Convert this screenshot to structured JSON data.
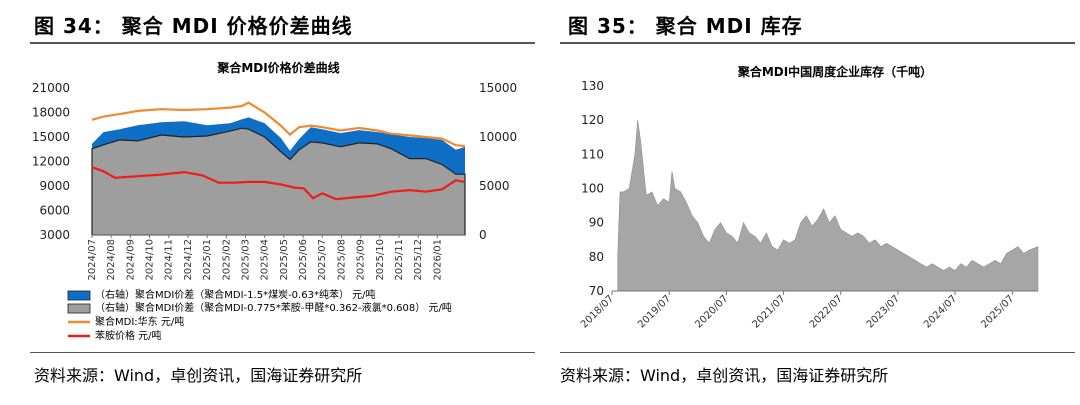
{
  "left": {
    "figure_title": "图 34：   聚合 MDI 价格价差曲线",
    "source": "资料来源：Wind，卓创资讯，国海证券研究所"
  },
  "right": {
    "figure_title": "图 35：   聚合 MDI 库存",
    "source": "资料来源：Wind，卓创资讯，国海证券研究所"
  },
  "chart_data": [
    {
      "type": "area",
      "title": "聚合MDI价格价差曲线",
      "x_categories": [
        "2024/07",
        "2024/08",
        "2024/09",
        "2024/10",
        "2024/11",
        "2024/12",
        "2025/01",
        "2025/02",
        "2025/03",
        "2025/04",
        "2025/05",
        "2025/06",
        "2025/07",
        "2025/08",
        "2025/09",
        "2025/10",
        "2025/11",
        "2025/12",
        "2026/01"
      ],
      "x_range": [
        2024.5,
        2026.12
      ],
      "y_left": {
        "min": 3000,
        "max": 21000,
        "ticks": [
          3000,
          6000,
          9000,
          12000,
          15000,
          18000,
          21000
        ]
      },
      "y_right": {
        "min": 0,
        "max": 15000,
        "ticks": [
          0,
          5000,
          10000,
          15000
        ]
      },
      "legend_position": "bottom",
      "series": [
        {
          "name": "（右轴）聚合MDI价差（聚合MDI-1.5*煤炭-0.63*纯苯） 元/吨",
          "axis": "right",
          "kind": "area",
          "color": "#0f6fc6",
          "points": [
            [
              2024.5,
              9300
            ],
            [
              2024.55,
              10500
            ],
            [
              2024.62,
              10800
            ],
            [
              2024.7,
              11200
            ],
            [
              2024.8,
              11500
            ],
            [
              2024.9,
              11600
            ],
            [
              2025.0,
              11200
            ],
            [
              2025.1,
              11400
            ],
            [
              2025.15,
              11800
            ],
            [
              2025.18,
              12000
            ],
            [
              2025.25,
              11400
            ],
            [
              2025.32,
              9900
            ],
            [
              2025.36,
              8600
            ],
            [
              2025.4,
              9800
            ],
            [
              2025.45,
              11000
            ],
            [
              2025.5,
              10800
            ],
            [
              2025.58,
              10400
            ],
            [
              2025.66,
              10700
            ],
            [
              2025.74,
              10500
            ],
            [
              2025.8,
              10300
            ],
            [
              2025.88,
              10000
            ],
            [
              2025.95,
              9900
            ],
            [
              2026.02,
              9700
            ],
            [
              2026.08,
              8700
            ],
            [
              2026.12,
              9000
            ]
          ]
        },
        {
          "name": "（右轴）聚合MDI价差（聚合MDI-0.775*苯胺-甲醛*0.362-液氯*0.608） 元/吨",
          "axis": "right",
          "kind": "area",
          "color": "#9e9e9e",
          "points": [
            [
              2024.5,
              8800
            ],
            [
              2024.55,
              9200
            ],
            [
              2024.62,
              9700
            ],
            [
              2024.7,
              9600
            ],
            [
              2024.8,
              10200
            ],
            [
              2024.9,
              10000
            ],
            [
              2025.0,
              10100
            ],
            [
              2025.1,
              10600
            ],
            [
              2025.15,
              10900
            ],
            [
              2025.18,
              10800
            ],
            [
              2025.25,
              10000
            ],
            [
              2025.32,
              8500
            ],
            [
              2025.36,
              7700
            ],
            [
              2025.4,
              8700
            ],
            [
              2025.45,
              9500
            ],
            [
              2025.5,
              9400
            ],
            [
              2025.58,
              9000
            ],
            [
              2025.66,
              9400
            ],
            [
              2025.74,
              9300
            ],
            [
              2025.8,
              8800
            ],
            [
              2025.88,
              7800
            ],
            [
              2025.95,
              7800
            ],
            [
              2026.02,
              7200
            ],
            [
              2026.08,
              6200
            ],
            [
              2026.12,
              6200
            ]
          ]
        },
        {
          "name": "聚合MDI:华东  元/吨",
          "axis": "left",
          "kind": "line",
          "color": "#f08a30",
          "points": [
            [
              2024.5,
              17100
            ],
            [
              2024.55,
              17500
            ],
            [
              2024.62,
              17800
            ],
            [
              2024.7,
              18200
            ],
            [
              2024.8,
              18400
            ],
            [
              2024.9,
              18300
            ],
            [
              2025.0,
              18400
            ],
            [
              2025.1,
              18600
            ],
            [
              2025.15,
              18800
            ],
            [
              2025.18,
              19200
            ],
            [
              2025.25,
              18000
            ],
            [
              2025.32,
              16400
            ],
            [
              2025.36,
              15300
            ],
            [
              2025.4,
              16200
            ],
            [
              2025.45,
              16400
            ],
            [
              2025.5,
              16200
            ],
            [
              2025.58,
              15800
            ],
            [
              2025.66,
              16100
            ],
            [
              2025.74,
              15800
            ],
            [
              2025.8,
              15400
            ],
            [
              2025.88,
              15200
            ],
            [
              2025.95,
              15000
            ],
            [
              2026.02,
              14800
            ],
            [
              2026.08,
              14000
            ],
            [
              2026.12,
              13900
            ]
          ]
        },
        {
          "name": "苯胺价格  元/吨",
          "axis": "left",
          "kind": "line",
          "color": "#ee1c1c",
          "points": [
            [
              2024.5,
              11300
            ],
            [
              2024.55,
              10800
            ],
            [
              2024.6,
              10000
            ],
            [
              2024.7,
              10200
            ],
            [
              2024.8,
              10400
            ],
            [
              2024.9,
              10700
            ],
            [
              2024.98,
              10300
            ],
            [
              2025.05,
              9400
            ],
            [
              2025.12,
              9400
            ],
            [
              2025.18,
              9500
            ],
            [
              2025.25,
              9500
            ],
            [
              2025.32,
              9200
            ],
            [
              2025.38,
              8800
            ],
            [
              2025.42,
              8700
            ],
            [
              2025.46,
              7500
            ],
            [
              2025.5,
              8100
            ],
            [
              2025.56,
              7400
            ],
            [
              2025.64,
              7600
            ],
            [
              2025.72,
              7800
            ],
            [
              2025.8,
              8300
            ],
            [
              2025.88,
              8500
            ],
            [
              2025.95,
              8300
            ],
            [
              2026.02,
              8600
            ],
            [
              2026.08,
              9700
            ],
            [
              2026.12,
              9500
            ]
          ]
        }
      ]
    },
    {
      "type": "area",
      "title": "聚合MDI中国周度企业库存（千吨）",
      "x_categories": [
        "2018/07",
        "2019/07",
        "2020/07",
        "2021/07",
        "2022/07",
        "2023/07",
        "2024/07",
        "2025/07"
      ],
      "x_range": [
        2018.5,
        2025.95
      ],
      "y": {
        "min": 70,
        "max": 130,
        "ticks": [
          70,
          80,
          90,
          100,
          110,
          120,
          130
        ]
      },
      "series": [
        {
          "kind": "area",
          "color": "#a6a6a6",
          "points": [
            [
              2018.6,
              80
            ],
            [
              2018.64,
              99
            ],
            [
              2018.7,
              99
            ],
            [
              2018.8,
              100
            ],
            [
              2018.9,
              110
            ],
            [
              2018.95,
              120
            ],
            [
              2019.0,
              114
            ],
            [
              2019.05,
              106
            ],
            [
              2019.1,
              98
            ],
            [
              2019.2,
              99
            ],
            [
              2019.3,
              95
            ],
            [
              2019.4,
              97
            ],
            [
              2019.5,
              96
            ],
            [
              2019.55,
              105
            ],
            [
              2019.6,
              100
            ],
            [
              2019.7,
              99
            ],
            [
              2019.8,
              96
            ],
            [
              2019.9,
              92
            ],
            [
              2020.0,
              90
            ],
            [
              2020.1,
              86
            ],
            [
              2020.2,
              84
            ],
            [
              2020.3,
              88
            ],
            [
              2020.4,
              90
            ],
            [
              2020.5,
              87
            ],
            [
              2020.6,
              86
            ],
            [
              2020.7,
              84
            ],
            [
              2020.8,
              90
            ],
            [
              2020.9,
              87
            ],
            [
              2021.0,
              86
            ],
            [
              2021.1,
              84
            ],
            [
              2021.2,
              87
            ],
            [
              2021.3,
              83
            ],
            [
              2021.4,
              82
            ],
            [
              2021.5,
              85
            ],
            [
              2021.6,
              84
            ],
            [
              2021.7,
              85
            ],
            [
              2021.8,
              90
            ],
            [
              2021.9,
              92
            ],
            [
              2022.0,
              89
            ],
            [
              2022.1,
              91
            ],
            [
              2022.2,
              94
            ],
            [
              2022.3,
              90
            ],
            [
              2022.4,
              92
            ],
            [
              2022.5,
              88
            ],
            [
              2022.6,
              87
            ],
            [
              2022.7,
              86
            ],
            [
              2022.8,
              87
            ],
            [
              2022.9,
              86
            ],
            [
              2023.0,
              84
            ],
            [
              2023.1,
              85
            ],
            [
              2023.2,
              83
            ],
            [
              2023.3,
              84
            ],
            [
              2023.4,
              83
            ],
            [
              2023.5,
              82
            ],
            [
              2023.6,
              81
            ],
            [
              2023.7,
              80
            ],
            [
              2023.8,
              79
            ],
            [
              2023.9,
              78
            ],
            [
              2024.0,
              77
            ],
            [
              2024.1,
              78
            ],
            [
              2024.2,
              77
            ],
            [
              2024.3,
              76
            ],
            [
              2024.4,
              77
            ],
            [
              2024.5,
              76
            ],
            [
              2024.6,
              78
            ],
            [
              2024.7,
              77
            ],
            [
              2024.8,
              79
            ],
            [
              2024.9,
              78
            ],
            [
              2025.0,
              77
            ],
            [
              2025.1,
              78
            ],
            [
              2025.2,
              79
            ],
            [
              2025.3,
              78
            ],
            [
              2025.4,
              81
            ],
            [
              2025.5,
              82
            ],
            [
              2025.6,
              83
            ],
            [
              2025.7,
              81
            ],
            [
              2025.8,
              82
            ],
            [
              2025.95,
              83
            ]
          ]
        }
      ]
    }
  ]
}
